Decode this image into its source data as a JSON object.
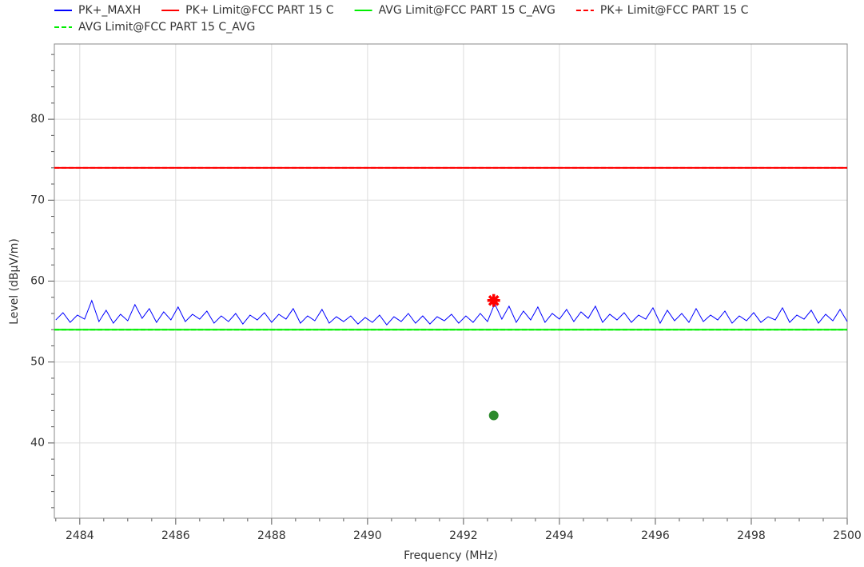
{
  "chart_data": {
    "type": "line",
    "xlabel": "Frequency (MHz)",
    "ylabel": "Level (dBµV/m)",
    "xlim": [
      2483.47,
      2500
    ],
    "ylim": [
      30.7,
      89.3
    ],
    "xticks": [
      2484,
      2486,
      2488,
      2490,
      2492,
      2494,
      2496,
      2498,
      2500
    ],
    "yticks": [
      40,
      50,
      60,
      70,
      80
    ],
    "xminorticks": [
      2483.5,
      2484.5,
      2485,
      2485.5,
      2486.5,
      2487,
      2487.5,
      2488.5,
      2489,
      2489.5,
      2490.5,
      2491,
      2491.5,
      2492.5,
      2493,
      2493.5,
      2494.5,
      2495,
      2495.5,
      2496.5,
      2497,
      2497.5,
      2498.5,
      2499,
      2499.5
    ],
    "yminorticks": [
      32,
      34,
      36,
      38,
      42,
      44,
      46,
      48,
      52,
      54,
      56,
      58,
      62,
      64,
      66,
      68,
      72,
      74,
      76,
      78,
      82,
      84,
      86,
      88
    ],
    "grid": true,
    "series": [
      {
        "name": "PK+_MAXH",
        "color": "#0000ff",
        "dash": false,
        "x": [
          2483.5,
          2483.65,
          2483.8,
          2483.95,
          2484.1,
          2484.25,
          2484.4,
          2484.55,
          2484.7,
          2484.85,
          2485,
          2485.15,
          2485.3,
          2485.45,
          2485.6,
          2485.75,
          2485.9,
          2486.05,
          2486.2,
          2486.35,
          2486.5,
          2486.65,
          2486.8,
          2486.95,
          2487.1,
          2487.25,
          2487.4,
          2487.55,
          2487.7,
          2487.85,
          2488,
          2488.15,
          2488.3,
          2488.45,
          2488.6,
          2488.75,
          2488.9,
          2489.05,
          2489.2,
          2489.35,
          2489.5,
          2489.65,
          2489.8,
          2489.95,
          2490.1,
          2490.25,
          2490.4,
          2490.55,
          2490.7,
          2490.85,
          2491,
          2491.15,
          2491.3,
          2491.45,
          2491.6,
          2491.75,
          2491.9,
          2492.05,
          2492.2,
          2492.35,
          2492.5,
          2492.65,
          2492.8,
          2492.95,
          2493.1,
          2493.25,
          2493.4,
          2493.55,
          2493.7,
          2493.85,
          2494,
          2494.15,
          2494.3,
          2494.45,
          2494.6,
          2494.75,
          2494.9,
          2495.05,
          2495.2,
          2495.35,
          2495.5,
          2495.65,
          2495.8,
          2495.95,
          2496.1,
          2496.25,
          2496.4,
          2496.55,
          2496.7,
          2496.85,
          2497,
          2497.15,
          2497.3,
          2497.45,
          2497.6,
          2497.75,
          2497.9,
          2498.05,
          2498.2,
          2498.35,
          2498.5,
          2498.65,
          2498.8,
          2498.95,
          2499.1,
          2499.25,
          2499.4,
          2499.55,
          2499.7,
          2499.85,
          2500
        ],
        "values": [
          55.2,
          56.1,
          54.9,
          55.8,
          55.3,
          57.6,
          55.0,
          56.4,
          54.8,
          55.9,
          55.1,
          57.1,
          55.4,
          56.6,
          54.9,
          56.2,
          55.2,
          56.8,
          55.0,
          55.9,
          55.3,
          56.3,
          54.8,
          55.7,
          55.0,
          56.0,
          54.7,
          55.8,
          55.2,
          56.1,
          54.9,
          55.9,
          55.3,
          56.6,
          54.8,
          55.7,
          55.1,
          56.5,
          54.8,
          55.6,
          55.0,
          55.7,
          54.7,
          55.5,
          54.9,
          55.8,
          54.6,
          55.6,
          55.0,
          56.0,
          54.8,
          55.7,
          54.7,
          55.6,
          55.1,
          55.9,
          54.8,
          55.7,
          54.9,
          56.0,
          55.0,
          57.2,
          55.3,
          56.9,
          54.9,
          56.3,
          55.2,
          56.8,
          54.9,
          56.0,
          55.3,
          56.5,
          55.0,
          56.2,
          55.4,
          56.9,
          54.9,
          55.9,
          55.2,
          56.1,
          54.9,
          55.8,
          55.3,
          56.7,
          54.8,
          56.4,
          55.1,
          56.0,
          54.9,
          56.6,
          55.0,
          55.8,
          55.2,
          56.3,
          54.8,
          55.7,
          55.1,
          56.1,
          54.9,
          55.6,
          55.2,
          56.7,
          54.9,
          55.8,
          55.3,
          56.4,
          54.8,
          55.9,
          55.1,
          56.5,
          55.0
        ]
      },
      {
        "name": "PK+ Limit@FCC PART 15 C",
        "color": "#ff0000",
        "dash": false,
        "x": [
          2483.47,
          2500
        ],
        "values": [
          74,
          74
        ]
      },
      {
        "name": "AVG Limit@FCC PART 15 C_AVG",
        "color": "#00ee00",
        "dash": false,
        "x": [
          2483.47,
          2500
        ],
        "values": [
          54,
          54
        ]
      },
      {
        "name": "PK+ Limit@FCC PART 15 C",
        "color": "#ff0000",
        "dash": true,
        "x": [
          2483.47,
          2500
        ],
        "values": [
          74,
          74
        ]
      },
      {
        "name": "AVG Limit@FCC PART 15 C_AVG",
        "color": "#00ee00",
        "dash": true,
        "x": [
          2483.47,
          2500
        ],
        "values": [
          54,
          54
        ]
      }
    ],
    "markers": [
      {
        "x": 2492.63,
        "y": 57.6,
        "color": "#ff0000",
        "shape": "star"
      },
      {
        "x": 2492.63,
        "y": 43.4,
        "color": "#2e8b2e",
        "shape": "circle"
      }
    ]
  }
}
